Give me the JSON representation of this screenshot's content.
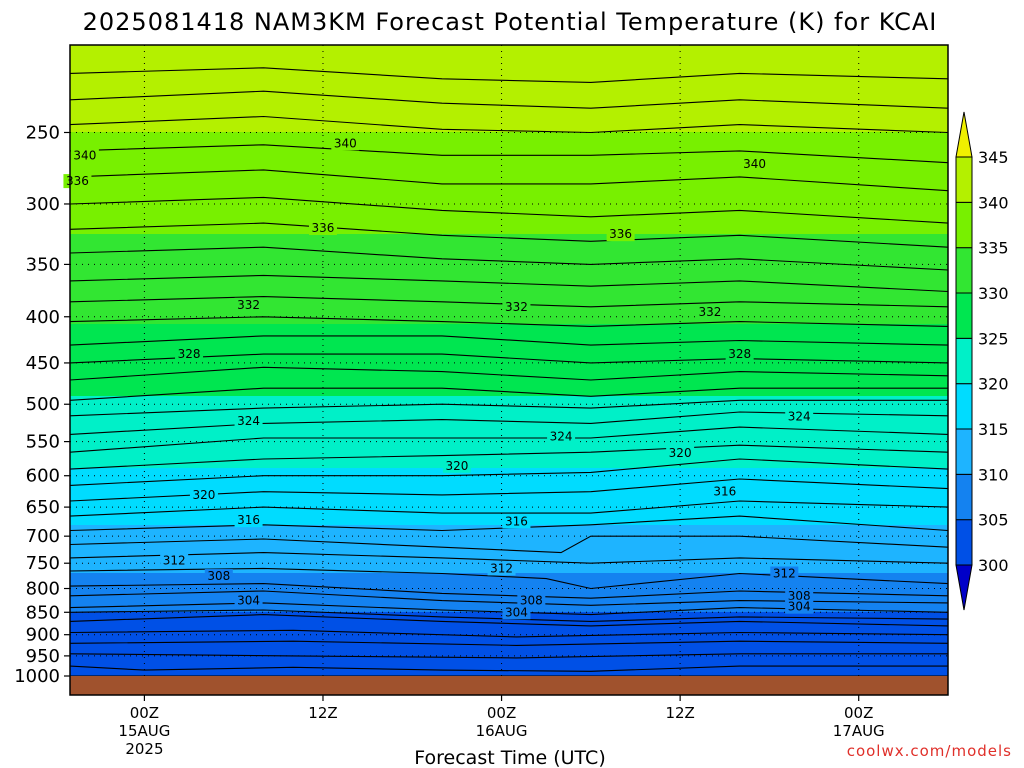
{
  "chart_data": {
    "type": "heatmap",
    "title": "2025081418 NAM3KM Forecast Potential Temperature (K) for KCAI",
    "xlabel": "Forecast Time (UTC)",
    "ylabel": "",
    "y_scale": "log",
    "y_reversed": true,
    "y_range": [
      1000,
      200
    ],
    "y_ticks": [
      250,
      300,
      350,
      400,
      450,
      500,
      550,
      600,
      650,
      700,
      750,
      800,
      850,
      900,
      950,
      1000
    ],
    "x_range_hours": [
      -5,
      54
    ],
    "x_ticks": [
      {
        "hour": 0,
        "line1": "00Z",
        "line2": "15AUG",
        "line3": "2025"
      },
      {
        "hour": 12,
        "line1": "12Z",
        "line2": "",
        "line3": ""
      },
      {
        "hour": 24,
        "line1": "00Z",
        "line2": "16AUG",
        "line3": ""
      },
      {
        "hour": 36,
        "line1": "12Z",
        "line2": "",
        "line3": ""
      },
      {
        "hour": 48,
        "line1": "00Z",
        "line2": "17AUG",
        "line3": ""
      }
    ],
    "grid": "dotted",
    "colorbar": {
      "levels": [
        300,
        305,
        310,
        315,
        320,
        325,
        330,
        335,
        340,
        345
      ],
      "labels": [
        "300",
        "305",
        "310",
        "315",
        "320",
        "325",
        "330",
        "335",
        "340",
        "345"
      ],
      "colors": [
        "#0000c8",
        "#0050e6",
        "#1482f0",
        "#1eb4ff",
        "#00dcff",
        "#00f0c8",
        "#00e650",
        "#32e632",
        "#78f000",
        "#b4f000",
        "#f0f000"
      ],
      "extend": "both"
    },
    "contour_interval": 4,
    "contour_lines": [
      {
        "value": 304,
        "points": [
          [
            -5,
            1000
          ],
          [
            54,
            1000
          ]
        ]
      },
      {
        "value": 304,
        "points": [
          [
            -5,
            975
          ],
          [
            0,
            985
          ],
          [
            10,
            978
          ],
          [
            20,
            985
          ],
          [
            30,
            988
          ],
          [
            40,
            975
          ],
          [
            54,
            975
          ]
        ]
      },
      {
        "value": 304,
        "points": [
          [
            -5,
            945
          ],
          [
            10,
            950
          ],
          [
            25,
            955
          ],
          [
            40,
            945
          ],
          [
            54,
            945
          ]
        ]
      },
      {
        "value": 304,
        "points": [
          [
            -5,
            920
          ],
          [
            10,
            915
          ],
          [
            25,
            925
          ],
          [
            40,
            915
          ],
          [
            54,
            920
          ]
        ]
      },
      {
        "value": 304,
        "points": [
          [
            -5,
            895
          ],
          [
            10,
            890
          ],
          [
            25,
            905
          ],
          [
            40,
            895
          ],
          [
            54,
            900
          ]
        ]
      },
      {
        "value": 304,
        "points": [
          [
            -5,
            870
          ],
          [
            8,
            855
          ],
          [
            20,
            870
          ],
          [
            30,
            880
          ],
          [
            40,
            870
          ],
          [
            54,
            880
          ]
        ]
      },
      {
        "value": 304,
        "points": [
          [
            -5,
            850
          ],
          [
            8,
            845
          ],
          [
            20,
            860
          ],
          [
            30,
            870
          ],
          [
            40,
            860
          ],
          [
            54,
            865
          ]
        ]
      },
      {
        "value": 308,
        "points": [
          [
            -5,
            840
          ],
          [
            8,
            830
          ],
          [
            20,
            845
          ],
          [
            30,
            855
          ],
          [
            40,
            840
          ],
          [
            54,
            850
          ]
        ]
      },
      {
        "value": 308,
        "points": [
          [
            -5,
            815
          ],
          [
            8,
            805
          ],
          [
            20,
            825
          ],
          [
            30,
            835
          ],
          [
            40,
            825
          ],
          [
            54,
            830
          ]
        ]
      },
      {
        "value": 308,
        "points": [
          [
            -5,
            795
          ],
          [
            8,
            790
          ],
          [
            20,
            810
          ],
          [
            30,
            820
          ],
          [
            40,
            805
          ],
          [
            54,
            815
          ]
        ]
      },
      {
        "value": 312,
        "points": [
          [
            -5,
            765
          ],
          [
            8,
            760
          ],
          [
            20,
            770
          ],
          [
            27,
            780
          ],
          [
            30,
            800
          ],
          [
            40,
            770
          ],
          [
            54,
            790
          ]
        ]
      },
      {
        "value": 312,
        "points": [
          [
            -5,
            740
          ],
          [
            8,
            730
          ],
          [
            20,
            740
          ],
          [
            30,
            750
          ],
          [
            40,
            740
          ],
          [
            54,
            750
          ]
        ]
      },
      {
        "value": 316,
        "points": [
          [
            -5,
            715
          ],
          [
            8,
            705
          ],
          [
            20,
            720
          ],
          [
            28,
            730
          ],
          [
            30,
            700
          ],
          [
            40,
            700
          ],
          [
            54,
            720
          ]
        ]
      },
      {
        "value": 316,
        "points": [
          [
            -5,
            690
          ],
          [
            8,
            680
          ],
          [
            20,
            690
          ],
          [
            30,
            680
          ],
          [
            40,
            665
          ],
          [
            54,
            690
          ]
        ]
      },
      {
        "value": 316,
        "points": [
          [
            -5,
            665
          ],
          [
            8,
            650
          ],
          [
            20,
            660
          ],
          [
            30,
            660
          ],
          [
            40,
            640
          ],
          [
            54,
            650
          ]
        ]
      },
      {
        "value": 320,
        "points": [
          [
            -5,
            640
          ],
          [
            8,
            625
          ],
          [
            20,
            630
          ],
          [
            30,
            625
          ],
          [
            40,
            605
          ],
          [
            54,
            620
          ]
        ]
      },
      {
        "value": 320,
        "points": [
          [
            -5,
            615
          ],
          [
            8,
            600
          ],
          [
            20,
            600
          ],
          [
            30,
            595
          ],
          [
            40,
            575
          ],
          [
            54,
            590
          ]
        ]
      },
      {
        "value": 320,
        "points": [
          [
            -5,
            590
          ],
          [
            8,
            575
          ],
          [
            20,
            570
          ],
          [
            30,
            565
          ],
          [
            40,
            555
          ],
          [
            54,
            565
          ]
        ]
      },
      {
        "value": 324,
        "points": [
          [
            -5,
            565
          ],
          [
            8,
            545
          ],
          [
            20,
            545
          ],
          [
            30,
            545
          ],
          [
            40,
            530
          ],
          [
            54,
            540
          ]
        ]
      },
      {
        "value": 324,
        "points": [
          [
            -5,
            540
          ],
          [
            8,
            525
          ],
          [
            20,
            520
          ],
          [
            30,
            525
          ],
          [
            40,
            510
          ],
          [
            54,
            515
          ]
        ]
      },
      {
        "value": 324,
        "points": [
          [
            -5,
            515
          ],
          [
            8,
            505
          ],
          [
            20,
            500
          ],
          [
            30,
            505
          ],
          [
            40,
            495
          ],
          [
            54,
            495
          ]
        ]
      },
      {
        "value": 328,
        "points": [
          [
            -5,
            495
          ],
          [
            8,
            480
          ],
          [
            20,
            480
          ],
          [
            30,
            490
          ],
          [
            40,
            480
          ],
          [
            54,
            480
          ]
        ]
      },
      {
        "value": 328,
        "points": [
          [
            -5,
            470
          ],
          [
            8,
            455
          ],
          [
            20,
            460
          ],
          [
            30,
            470
          ],
          [
            40,
            460
          ],
          [
            54,
            465
          ]
        ]
      },
      {
        "value": 328,
        "points": [
          [
            -5,
            450
          ],
          [
            8,
            440
          ],
          [
            20,
            440
          ],
          [
            30,
            450
          ],
          [
            40,
            445
          ],
          [
            54,
            450
          ]
        ]
      },
      {
        "value": 332,
        "points": [
          [
            -5,
            430
          ],
          [
            8,
            420
          ],
          [
            20,
            420
          ],
          [
            30,
            430
          ],
          [
            40,
            425
          ],
          [
            54,
            430
          ]
        ]
      },
      {
        "value": 332,
        "points": [
          [
            -5,
            405
          ],
          [
            8,
            400
          ],
          [
            20,
            405
          ],
          [
            30,
            410
          ],
          [
            40,
            405
          ],
          [
            54,
            410
          ]
        ]
      },
      {
        "value": 332,
        "points": [
          [
            -5,
            385
          ],
          [
            8,
            380
          ],
          [
            20,
            385
          ],
          [
            30,
            390
          ],
          [
            40,
            385
          ],
          [
            54,
            390
          ]
        ]
      },
      {
        "value": 332,
        "points": [
          [
            -5,
            365
          ],
          [
            8,
            360
          ],
          [
            20,
            365
          ],
          [
            30,
            370
          ],
          [
            40,
            365
          ],
          [
            54,
            375
          ]
        ]
      },
      {
        "value": 336,
        "points": [
          [
            -5,
            340
          ],
          [
            8,
            335
          ],
          [
            20,
            345
          ],
          [
            30,
            350
          ],
          [
            40,
            345
          ],
          [
            54,
            355
          ]
        ]
      },
      {
        "value": 336,
        "points": [
          [
            -5,
            320
          ],
          [
            8,
            315
          ],
          [
            20,
            325
          ],
          [
            30,
            330
          ],
          [
            40,
            325
          ],
          [
            54,
            335
          ]
        ]
      },
      {
        "value": 336,
        "points": [
          [
            -5,
            300
          ],
          [
            8,
            295
          ],
          [
            20,
            305
          ],
          [
            30,
            310
          ],
          [
            40,
            305
          ],
          [
            54,
            315
          ]
        ]
      },
      {
        "value": 340,
        "points": [
          [
            -5,
            280
          ],
          [
            8,
            275
          ],
          [
            20,
            285
          ],
          [
            30,
            285
          ],
          [
            40,
            280
          ],
          [
            54,
            290
          ]
        ]
      },
      {
        "value": 340,
        "points": [
          [
            -5,
            262
          ],
          [
            8,
            258
          ],
          [
            20,
            265
          ],
          [
            30,
            265
          ],
          [
            40,
            262
          ],
          [
            54,
            270
          ]
        ]
      },
      {
        "value": 340,
        "points": [
          [
            -5,
            245
          ],
          [
            8,
            240
          ],
          [
            20,
            248
          ],
          [
            30,
            250
          ],
          [
            40,
            245
          ],
          [
            54,
            250
          ]
        ]
      },
      {
        "value": 340,
        "points": [
          [
            -5,
            230
          ],
          [
            8,
            225
          ],
          [
            20,
            232
          ],
          [
            30,
            235
          ],
          [
            40,
            230
          ],
          [
            54,
            235
          ]
        ]
      },
      {
        "value": 340,
        "points": [
          [
            -5,
            215
          ],
          [
            8,
            212
          ],
          [
            20,
            218
          ],
          [
            30,
            220
          ],
          [
            40,
            215
          ],
          [
            54,
            218
          ]
        ]
      }
    ],
    "contour_labels": [
      {
        "text": "340",
        "hour": -4,
        "p": 265
      },
      {
        "text": "340",
        "hour": 13.5,
        "p": 257
      },
      {
        "text": "340",
        "hour": 41,
        "p": 271
      },
      {
        "text": "336",
        "hour": -4.5,
        "p": 283
      },
      {
        "text": "336",
        "hour": 12,
        "p": 319
      },
      {
        "text": "336",
        "hour": 32,
        "p": 324
      },
      {
        "text": "332",
        "hour": 7,
        "p": 388
      },
      {
        "text": "332",
        "hour": 25,
        "p": 390
      },
      {
        "text": "332",
        "hour": 38,
        "p": 395
      },
      {
        "text": "328",
        "hour": 3,
        "p": 440
      },
      {
        "text": "328",
        "hour": 40,
        "p": 440
      },
      {
        "text": "324",
        "hour": 7,
        "p": 522
      },
      {
        "text": "324",
        "hour": 28,
        "p": 543
      },
      {
        "text": "324",
        "hour": 44,
        "p": 516
      },
      {
        "text": "320",
        "hour": 21,
        "p": 585
      },
      {
        "text": "320",
        "hour": 36,
        "p": 566
      },
      {
        "text": "320",
        "hour": 4,
        "p": 630
      },
      {
        "text": "316",
        "hour": 39,
        "p": 625
      },
      {
        "text": "316",
        "hour": 7,
        "p": 672
      },
      {
        "text": "316",
        "hour": 25,
        "p": 674
      },
      {
        "text": "312",
        "hour": 2,
        "p": 745
      },
      {
        "text": "312",
        "hour": 24,
        "p": 760
      },
      {
        "text": "312",
        "hour": 43,
        "p": 770
      },
      {
        "text": "308",
        "hour": 5,
        "p": 775
      },
      {
        "text": "308",
        "hour": 26,
        "p": 825
      },
      {
        "text": "308",
        "hour": 44,
        "p": 815
      },
      {
        "text": "304",
        "hour": 7,
        "p": 825
      },
      {
        "text": "304",
        "hour": 25,
        "p": 850
      },
      {
        "text": "304",
        "hour": 44,
        "p": 838
      }
    ],
    "ground_color": "#a0522d"
  },
  "credit": "coolwx.com/models"
}
